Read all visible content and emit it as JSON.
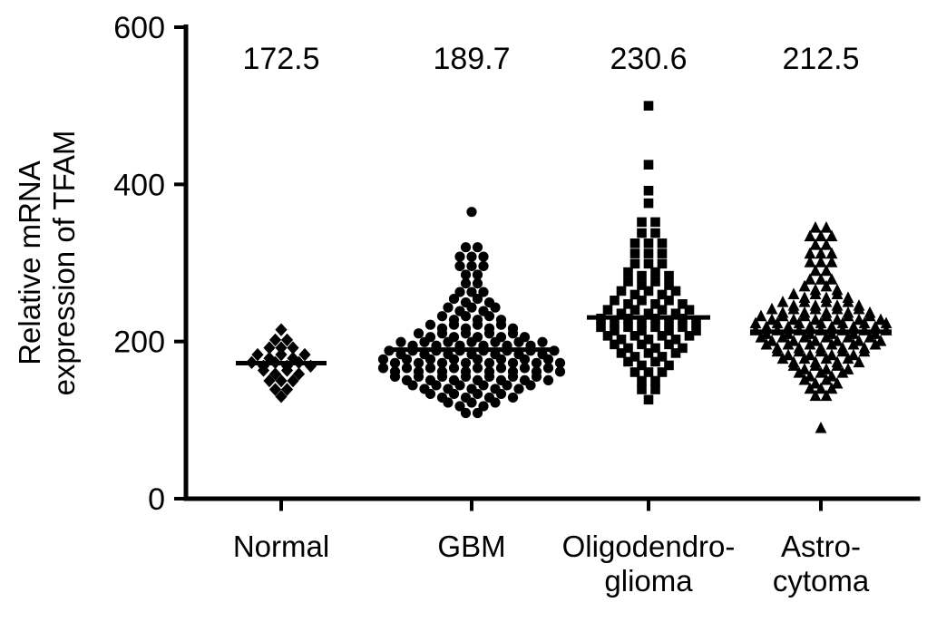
{
  "chart_data": {
    "type": "scatter",
    "title": "",
    "xlabel": "",
    "ylabel_lines": [
      "Relative mRNA",
      "expression of TFAM"
    ],
    "ylim": [
      0,
      600
    ],
    "yticks": [
      0,
      200,
      400,
      600
    ],
    "grid": false,
    "legend": "none",
    "marker_color": "#000000",
    "axis_color": "#000000",
    "background_color": "#ffffff",
    "rows_format": "[expression_value, number_of_samples_at_that_value] (beeswarm stacked points)",
    "groups": [
      {
        "name": "Normal",
        "label_lines": [
          "Normal"
        ],
        "marker": "diamond",
        "mean": 172.5,
        "mean_label": "172.5",
        "rows": [
          [
            215,
            1
          ],
          [
            202,
            2
          ],
          [
            192,
            3
          ],
          [
            181,
            5
          ],
          [
            171,
            6
          ],
          [
            161,
            4
          ],
          [
            150,
            3
          ],
          [
            139,
            2
          ],
          [
            130,
            1
          ]
        ]
      },
      {
        "name": "GBM",
        "label_lines": [
          "GBM"
        ],
        "marker": "circle",
        "mean": 189.7,
        "mean_label": "189.7",
        "rows": [
          [
            365,
            1
          ],
          [
            320,
            2
          ],
          [
            308,
            3
          ],
          [
            296,
            3
          ],
          [
            285,
            2
          ],
          [
            274,
            2
          ],
          [
            263,
            3
          ],
          [
            252,
            4
          ],
          [
            241,
            5
          ],
          [
            230,
            6
          ],
          [
            219,
            8
          ],
          [
            208,
            10
          ],
          [
            197,
            13
          ],
          [
            186,
            15
          ],
          [
            175,
            16
          ],
          [
            164,
            16
          ],
          [
            153,
            14
          ],
          [
            142,
            11
          ],
          [
            131,
            8
          ],
          [
            120,
            5
          ],
          [
            109,
            2
          ]
        ]
      },
      {
        "name": "Oligodendroglioma",
        "label_lines": [
          "Oligodendro-",
          "glioma"
        ],
        "marker": "square",
        "mean": 230.6,
        "mean_label": "230.6",
        "rows": [
          [
            500,
            1
          ],
          [
            425,
            1
          ],
          [
            392,
            1
          ],
          [
            376,
            1
          ],
          [
            352,
            2
          ],
          [
            338,
            2
          ],
          [
            325,
            3
          ],
          [
            312,
            3
          ],
          [
            299,
            3
          ],
          [
            286,
            4
          ],
          [
            274,
            4
          ],
          [
            262,
            5
          ],
          [
            250,
            6
          ],
          [
            238,
            7
          ],
          [
            227,
            8
          ],
          [
            216,
            8
          ],
          [
            205,
            7
          ],
          [
            194,
            6
          ],
          [
            183,
            5
          ],
          [
            172,
            4
          ],
          [
            161,
            3
          ],
          [
            150,
            2
          ],
          [
            139,
            2
          ],
          [
            126,
            1
          ]
        ]
      },
      {
        "name": "Astrocytoma",
        "label_lines": [
          "Astro-",
          "cytoma"
        ],
        "marker": "triangle",
        "mean": 212.5,
        "mean_label": "212.5",
        "rows": [
          [
            345,
            2
          ],
          [
            334,
            3
          ],
          [
            323,
            2
          ],
          [
            312,
            3
          ],
          [
            301,
            3
          ],
          [
            290,
            2
          ],
          [
            279,
            3
          ],
          [
            268,
            4
          ],
          [
            258,
            6
          ],
          [
            248,
            8
          ],
          [
            239,
            10
          ],
          [
            230,
            12
          ],
          [
            221,
            13
          ],
          [
            212,
            13
          ],
          [
            203,
            12
          ],
          [
            194,
            11
          ],
          [
            185,
            9
          ],
          [
            176,
            8
          ],
          [
            167,
            6
          ],
          [
            158,
            5
          ],
          [
            149,
            4
          ],
          [
            140,
            3
          ],
          [
            131,
            2
          ],
          [
            90,
            1
          ]
        ]
      }
    ]
  }
}
